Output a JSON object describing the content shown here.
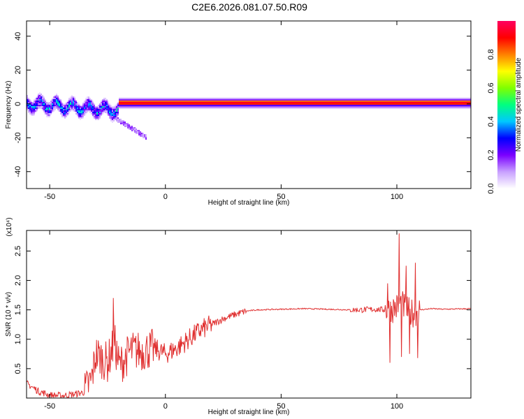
{
  "title": "C2E6.2026.081.07.50.R09",
  "chart_data": [
    {
      "type": "heatmap",
      "xlabel": "Height of straight line (km)",
      "ylabel": "Frequency (Hz)",
      "xlim": [
        -60,
        132
      ],
      "ylim": [
        -50,
        49
      ],
      "x_ticks": [
        -50,
        0,
        50,
        100
      ],
      "y_ticks": [
        -40,
        -20,
        0,
        20,
        40
      ],
      "grid": false,
      "colorbar": {
        "label": "Normalized spectral amplitude",
        "range": [
          0,
          1
        ],
        "ticks": [
          "0.0",
          "0.2",
          "0.4",
          "0.6",
          "0.8"
        ],
        "colormap": [
          "#ffffff",
          "#c8a0ff",
          "#7a00ff",
          "#0000ff",
          "#00c8ff",
          "#00ff80",
          "#80ff00",
          "#ffff00",
          "#ff8000",
          "#ff0000",
          "#ff0060"
        ]
      },
      "bands": [
        {
          "x0": -60,
          "x1": -20,
          "center_start": 0,
          "center_end": -4,
          "halfwidth": 5,
          "amplitude": 0.35,
          "noisy": true
        },
        {
          "x0": -20,
          "x1": 132,
          "center_start": 0.5,
          "center_end": 0.5,
          "halfwidth": 1.2,
          "amplitude": 0.95,
          "noisy": false
        }
      ],
      "tail": {
        "x0": -22,
        "x1": -8,
        "y0": -8,
        "y1": -20
      }
    },
    {
      "type": "line",
      "xlabel": "Height of straight line (km)",
      "ylabel": "SNR (10 * v/v)",
      "y_scale_label": "(x10⁴)",
      "xlim": [
        -60,
        132
      ],
      "ylim": [
        0,
        2.85
      ],
      "x_ticks": [
        -50,
        0,
        50,
        100
      ],
      "y_ticks": [
        "0.5",
        "1.0",
        "1.5",
        "2.0",
        "2.5"
      ],
      "grid": false,
      "color": "#e03030",
      "series": [
        {
          "x": [
            -60,
            -55,
            -50,
            -45,
            -40,
            -35,
            -32,
            -30,
            -25,
            -22,
            -20,
            -15,
            -10,
            -5,
            0,
            5,
            10,
            15,
            20,
            25,
            30,
            35,
            40,
            50,
            60,
            70,
            80,
            85,
            90,
            95,
            97,
            100,
            102,
            104,
            106,
            108,
            110,
            115,
            120,
            132
          ],
          "y": [
            0.25,
            0.12,
            0.05,
            0.04,
            0.06,
            0.1,
            0.3,
            0.75,
            0.6,
            0.95,
            0.55,
            0.8,
            0.8,
            0.85,
            0.75,
            0.85,
            1.0,
            1.15,
            1.25,
            1.35,
            1.42,
            1.48,
            1.5,
            1.51,
            1.52,
            1.51,
            1.5,
            1.5,
            1.51,
            1.5,
            1.5,
            1.55,
            1.6,
            1.5,
            1.45,
            1.45,
            1.5,
            1.52,
            1.51,
            1.52
          ],
          "spikes": [
            {
              "x": -22.5,
              "y": 1.7
            },
            {
              "x": 96,
              "y": 1.95
            },
            {
              "x": 97,
              "y": 0.6
            },
            {
              "x": 101,
              "y": 2.8
            },
            {
              "x": 102,
              "y": 0.7
            },
            {
              "x": 104,
              "y": 2.25
            },
            {
              "x": 105.5,
              "y": 0.75
            },
            {
              "x": 108,
              "y": 2.3
            },
            {
              "x": 109,
              "y": 0.68
            }
          ]
        }
      ]
    }
  ]
}
